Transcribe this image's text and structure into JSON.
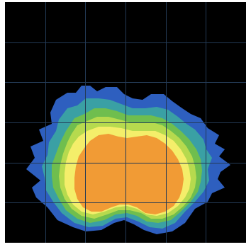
{
  "view": {
    "background_color": "#000000",
    "grid_color": "#233a55",
    "grid_columns": 6,
    "grid_rows": 6
  },
  "contour_levels": [
    {
      "level": 1,
      "color": "#2e5fbf"
    },
    {
      "level": 2,
      "color": "#3aa0a4"
    },
    {
      "level": 3,
      "color": "#6fbe4e"
    },
    {
      "level": 4,
      "color": "#b6da4e"
    },
    {
      "level": 5,
      "color": "#f4ee6a"
    },
    {
      "level": 6,
      "color": "#f19b35"
    }
  ]
}
